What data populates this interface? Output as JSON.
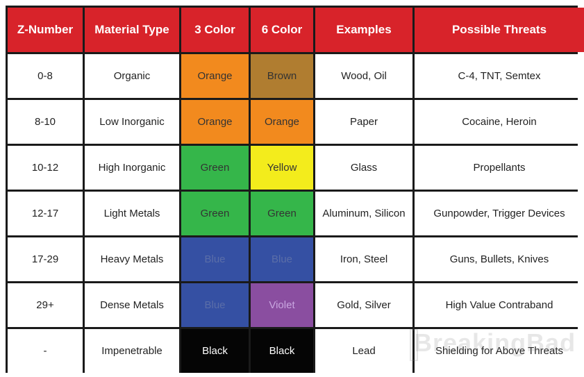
{
  "headers": [
    "Z-Number",
    "Material Type",
    "3 Color",
    "6 Color",
    "Examples",
    "Possible Threats"
  ],
  "rows": [
    {
      "z": "0-8",
      "material": "Organic",
      "c3": "Orange",
      "c3_color": "#f28a1e",
      "c6": "Brown",
      "c6_color": "#b07d30",
      "examples": "Wood, Oil",
      "threats": "C-4, TNT, Semtex"
    },
    {
      "z": "8-10",
      "material": "Low Inorganic",
      "c3": "Orange",
      "c3_color": "#f28a1e",
      "c6": "Orange",
      "c6_color": "#f28a1e",
      "examples": "Paper",
      "threats": "Cocaine, Heroin"
    },
    {
      "z": "10-12",
      "material": "High Inorganic",
      "c3": "Green",
      "c3_color": "#35b64a",
      "c6": "Yellow",
      "c6_color": "#f3ec1c",
      "examples": "Glass",
      "threats": "Propellants"
    },
    {
      "z": "12-17",
      "material": "Light Metals",
      "c3": "Green",
      "c3_color": "#35b64a",
      "c6": "Green",
      "c6_color": "#35b64a",
      "examples": "Aluminum, Silicon",
      "threats": "Gunpowder, Trigger Devices"
    },
    {
      "z": "17-29",
      "material": "Heavy Metals",
      "c3": "Blue",
      "c3_color": "#3550a3",
      "c6": "Blue",
      "c6_color": "#3550a3",
      "examples": "Iron, Steel",
      "threats": "Guns, Bullets, Knives"
    },
    {
      "z": "29+",
      "material": "Dense Metals",
      "c3": "Blue",
      "c3_color": "#3550a3",
      "c6": "Violet",
      "c6_color": "#8a4ea0",
      "examples": "Gold, Silver",
      "threats": "High Value Contraband"
    },
    {
      "z": "-",
      "material": "Impenetrable",
      "c3": "Black",
      "c3_color": "#050505",
      "c6": "Black",
      "c6_color": "#050505",
      "examples": "Lead",
      "threats": "Shielding for Above Threats"
    }
  ],
  "watermark": "BreakingBad"
}
